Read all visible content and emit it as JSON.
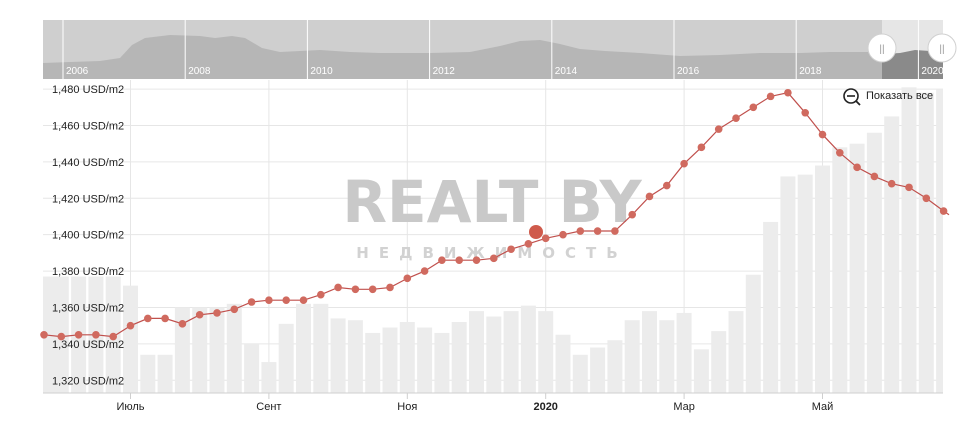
{
  "navigator": {
    "year_labels": [
      "2006",
      "2008",
      "2010",
      "2012",
      "2014",
      "2016",
      "2018",
      "2020"
    ],
    "handle_left_symbol": "||",
    "handle_right_symbol": "||"
  },
  "controls": {
    "reset_zoom_label": "Показать все"
  },
  "watermark": {
    "logo_text": "REALT BY",
    "tagline": "НЕДВИЖИМОСТЬ"
  },
  "colors": {
    "line": "#c0504d",
    "marker": "#d06a5f",
    "volume_bar": "#ececec",
    "grid": "#e6e6e6",
    "navigator_bg": "#cfcfcf",
    "navigator_area": "#b7b7b7",
    "navigator_selected": "#8a8a8a"
  },
  "chart_data": {
    "type": "line",
    "ylabel": "",
    "ylim": [
      1313,
      1485
    ],
    "y_ticks": [
      "1,320 USD/m2",
      "1,340 USD/m2",
      "1,360 USD/m2",
      "1,380 USD/m2",
      "1,400 USD/m2",
      "1,420 USD/m2",
      "1,440 USD/m2",
      "1,460 USD/m2",
      "1,480 USD/m2"
    ],
    "y_tick_values": [
      1320,
      1340,
      1360,
      1380,
      1400,
      1420,
      1440,
      1460,
      1480
    ],
    "x_ticks": [
      "Июль",
      "Сент",
      "Ноя",
      "2020",
      "Мар",
      "Май"
    ],
    "x_tick_positions": [
      5,
      13,
      21,
      29,
      37,
      45
    ],
    "x_tick_bold": [
      false,
      false,
      false,
      true,
      false,
      false
    ],
    "series": [
      {
        "type": "line",
        "values": [
          1345,
          1344,
          1345,
          1345,
          1344,
          1350,
          1354,
          1354,
          1351,
          1356,
          1357,
          1359,
          1363,
          1364,
          1364,
          1364,
          1367,
          1371,
          1370,
          1370,
          1371,
          1376,
          1380,
          1386,
          1386,
          1386,
          1387,
          1392,
          1395,
          1398,
          1400,
          1402,
          1402,
          1402,
          1411,
          1421,
          1427,
          1439,
          1448,
          1458,
          1464,
          1470,
          1476,
          1478,
          1467,
          1455,
          1445,
          1437,
          1432,
          1428,
          1426,
          1420,
          1413
        ]
      },
      {
        "type": "bar",
        "values": [
          1377,
          1377,
          1377,
          1377,
          1377,
          1372,
          1334,
          1334,
          1360,
          1360,
          1360,
          1362,
          1340,
          1330,
          1351,
          1362,
          1362,
          1354,
          1353,
          1346,
          1349,
          1352,
          1349,
          1346,
          1352,
          1358,
          1355,
          1358,
          1361,
          1358,
          1345,
          1334,
          1338,
          1342,
          1353,
          1358,
          1353,
          1357,
          1337,
          1347,
          1358,
          1378,
          1407,
          1432,
          1433,
          1438,
          1448,
          1450,
          1456,
          1465,
          1481,
          1478,
          1480
        ]
      }
    ]
  }
}
